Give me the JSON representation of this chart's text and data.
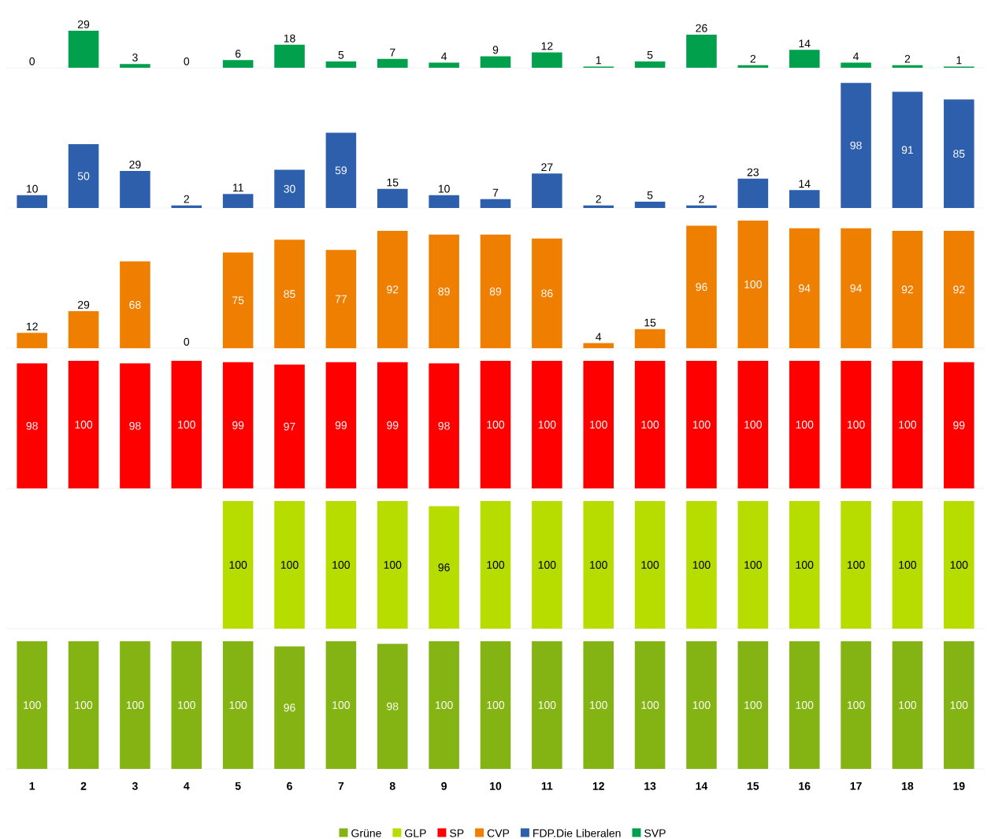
{
  "chart_data": [
    {
      "type": "bar",
      "categories": [
        "1",
        "2",
        "3",
        "4",
        "5",
        "6",
        "7",
        "8",
        "9",
        "10",
        "11",
        "12",
        "13",
        "14",
        "15",
        "16",
        "17",
        "18",
        "19"
      ],
      "series": [
        {
          "name": "SVP",
          "color": "#00a04c",
          "values": [
            0,
            29,
            3,
            0,
            6,
            18,
            5,
            7,
            4,
            9,
            12,
            1,
            5,
            26,
            2,
            14,
            4,
            2,
            1
          ]
        }
      ],
      "data_labels": true,
      "tick_labels": false,
      "legend": "bottom"
    },
    {
      "type": "bar",
      "categories": [
        "1",
        "2",
        "3",
        "4",
        "5",
        "6",
        "7",
        "8",
        "9",
        "10",
        "11",
        "12",
        "13",
        "14",
        "15",
        "16",
        "17",
        "18",
        "19"
      ],
      "series": [
        {
          "name": "FDP.Die Liberalen",
          "color": "#2e5fac",
          "values": [
            10,
            50,
            29,
            2,
            11,
            30,
            59,
            15,
            10,
            7,
            27,
            2,
            5,
            2,
            23,
            14,
            98,
            91,
            85
          ]
        }
      ],
      "data_labels": true,
      "tick_labels": false,
      "legend": "bottom"
    },
    {
      "type": "bar",
      "categories": [
        "1",
        "2",
        "3",
        "4",
        "5",
        "6",
        "7",
        "8",
        "9",
        "10",
        "11",
        "12",
        "13",
        "14",
        "15",
        "16",
        "17",
        "18",
        "19"
      ],
      "series": [
        {
          "name": "CVP",
          "color": "#ee7f00",
          "values": [
            12,
            29,
            68,
            0,
            75,
            85,
            77,
            92,
            89,
            89,
            86,
            4,
            15,
            96,
            100,
            94,
            94,
            92,
            92
          ]
        }
      ],
      "data_labels": true,
      "tick_labels": false,
      "legend": "bottom"
    },
    {
      "type": "bar",
      "categories": [
        "1",
        "2",
        "3",
        "4",
        "5",
        "6",
        "7",
        "8",
        "9",
        "10",
        "11",
        "12",
        "13",
        "14",
        "15",
        "16",
        "17",
        "18",
        "19"
      ],
      "series": [
        {
          "name": "SP",
          "color": "#ff0000",
          "values": [
            98,
            100,
            98,
            100,
            99,
            97,
            99,
            99,
            98,
            100,
            100,
            100,
            100,
            100,
            100,
            100,
            100,
            100,
            99
          ]
        }
      ],
      "data_labels": true,
      "tick_labels": false,
      "legend": "bottom"
    },
    {
      "type": "bar",
      "categories": [
        "1",
        "2",
        "3",
        "4",
        "5",
        "6",
        "7",
        "8",
        "9",
        "10",
        "11",
        "12",
        "13",
        "14",
        "15",
        "16",
        "17",
        "18",
        "19"
      ],
      "series": [
        {
          "name": "GLP",
          "color": "#b7dd00",
          "values": [
            null,
            null,
            null,
            null,
            100,
            100,
            100,
            100,
            96,
            100,
            100,
            100,
            100,
            100,
            100,
            100,
            100,
            100,
            100
          ]
        }
      ],
      "data_labels": true,
      "tick_labels": false,
      "legend": "bottom"
    },
    {
      "type": "bar",
      "categories": [
        "1",
        "2",
        "3",
        "4",
        "5",
        "6",
        "7",
        "8",
        "9",
        "10",
        "11",
        "12",
        "13",
        "14",
        "15",
        "16",
        "17",
        "18",
        "19"
      ],
      "series": [
        {
          "name": "Grüne",
          "color": "#84b414",
          "values": [
            100,
            100,
            100,
            100,
            100,
            96,
            100,
            98,
            100,
            100,
            100,
            100,
            100,
            100,
            100,
            100,
            100,
            100,
            100
          ]
        }
      ],
      "data_labels": true,
      "tick_labels": "x",
      "legend": "bottom"
    }
  ]
}
